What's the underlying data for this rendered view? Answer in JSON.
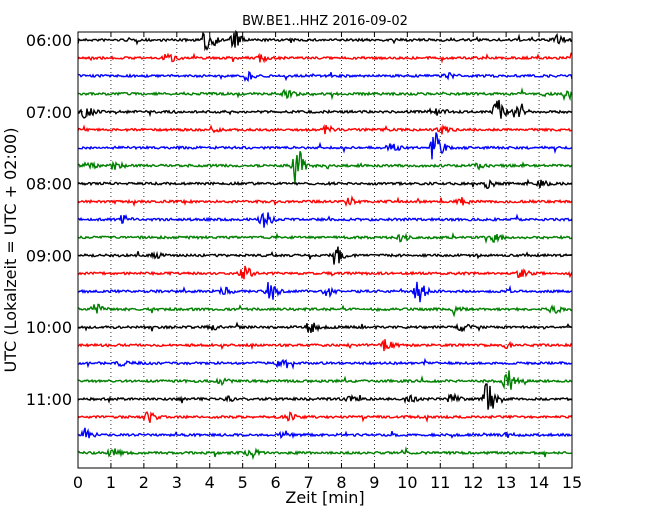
{
  "chart_data": {
    "type": "line",
    "title": "BW.BE1..HHZ 2016-09-02",
    "xlabel": "Zeit  [min]",
    "ylabel": "UTC (Lokalzeit = UTC + 02:00)",
    "xlim": [
      0,
      15
    ],
    "x_ticks": [
      "0",
      "1",
      "2",
      "3",
      "4",
      "5",
      "6",
      "7",
      "8",
      "9",
      "10",
      "11",
      "12",
      "13",
      "14",
      "15"
    ],
    "y_ticks": [
      "06:00",
      "07:00",
      "08:00",
      "09:00",
      "10:00",
      "11:00"
    ],
    "grid": "vertical dotted",
    "colors": [
      "#000000",
      "#ff0000",
      "#0000ff",
      "#008000"
    ],
    "traces": [
      {
        "start": "06:00",
        "color": "#000000",
        "events": [
          [
            3.9,
            1.0
          ],
          [
            4.7,
            0.7
          ],
          [
            14.5,
            0.4
          ]
        ]
      },
      {
        "start": "06:15",
        "color": "#ff0000",
        "events": [
          [
            2.7,
            0.4
          ],
          [
            5.5,
            0.3
          ],
          [
            15.0,
            0.5
          ]
        ]
      },
      {
        "start": "06:30",
        "color": "#0000ff",
        "events": [
          [
            5.1,
            0.3
          ],
          [
            11.2,
            0.2
          ]
        ]
      },
      {
        "start": "06:45",
        "color": "#008000",
        "events": [
          [
            6.3,
            0.4
          ],
          [
            14.8,
            0.4
          ]
        ]
      },
      {
        "start": "07:00",
        "color": "#000000",
        "events": [
          [
            0.2,
            0.5
          ],
          [
            10.9,
            0.3
          ],
          [
            12.7,
            1.0
          ],
          [
            13.3,
            0.6
          ]
        ]
      },
      {
        "start": "07:15",
        "color": "#ff0000",
        "events": [
          [
            4.0,
            0.2
          ],
          [
            7.5,
            0.3
          ],
          [
            11.0,
            0.3
          ]
        ]
      },
      {
        "start": "07:30",
        "color": "#0000ff",
        "events": [
          [
            10.8,
            1.5
          ],
          [
            9.5,
            0.3
          ]
        ]
      },
      {
        "start": "07:45",
        "color": "#008000",
        "events": [
          [
            0.3,
            0.4
          ],
          [
            1.1,
            0.3
          ],
          [
            6.6,
            1.5
          ],
          [
            12.1,
            0.3
          ]
        ]
      },
      {
        "start": "08:00",
        "color": "#000000",
        "events": [
          [
            12.4,
            0.3
          ],
          [
            14.0,
            0.3
          ]
        ]
      },
      {
        "start": "08:15",
        "color": "#ff0000",
        "events": [
          [
            8.2,
            0.3
          ],
          [
            11.6,
            0.3
          ]
        ]
      },
      {
        "start": "08:30",
        "color": "#0000ff",
        "events": [
          [
            1.3,
            0.3
          ],
          [
            5.6,
            0.8
          ]
        ]
      },
      {
        "start": "08:45",
        "color": "#008000",
        "events": [
          [
            9.8,
            0.3
          ],
          [
            12.6,
            0.3
          ]
        ]
      },
      {
        "start": "09:00",
        "color": "#000000",
        "events": [
          [
            7.8,
            0.8
          ],
          [
            2.3,
            0.3
          ]
        ]
      },
      {
        "start": "09:15",
        "color": "#ff0000",
        "events": [
          [
            5.0,
            0.6
          ],
          [
            13.4,
            0.3
          ]
        ]
      },
      {
        "start": "09:30",
        "color": "#0000ff",
        "events": [
          [
            5.8,
            0.8
          ],
          [
            10.3,
            0.9
          ],
          [
            4.4,
            0.3
          ],
          [
            7.5,
            0.3
          ]
        ]
      },
      {
        "start": "09:45",
        "color": "#008000",
        "events": [
          [
            0.5,
            0.4
          ],
          [
            14.4,
            0.3
          ],
          [
            11.4,
            0.2
          ]
        ]
      },
      {
        "start": "10:00",
        "color": "#000000",
        "events": [
          [
            7.0,
            0.6
          ],
          [
            4.0,
            0.2
          ],
          [
            11.6,
            0.3
          ]
        ]
      },
      {
        "start": "10:15",
        "color": "#ff0000",
        "events": [
          [
            9.3,
            0.4
          ],
          [
            13.0,
            0.2
          ]
        ]
      },
      {
        "start": "10:30",
        "color": "#0000ff",
        "events": [
          [
            1.3,
            0.2
          ],
          [
            6.1,
            0.3
          ]
        ]
      },
      {
        "start": "10:45",
        "color": "#008000",
        "events": [
          [
            13.0,
            0.9
          ],
          [
            4.3,
            0.3
          ]
        ]
      },
      {
        "start": "11:00",
        "color": "#000000",
        "events": [
          [
            12.4,
            1.3
          ],
          [
            11.3,
            0.4
          ],
          [
            4.5,
            0.3
          ],
          [
            10.0,
            0.3
          ],
          [
            8.2,
            0.2
          ]
        ]
      },
      {
        "start": "11:15",
        "color": "#ff0000",
        "events": [
          [
            2.1,
            0.5
          ],
          [
            6.4,
            0.3
          ]
        ]
      },
      {
        "start": "11:30",
        "color": "#0000ff",
        "events": [
          [
            0.2,
            0.6
          ],
          [
            6.2,
            0.3
          ],
          [
            13.0,
            0.2
          ]
        ]
      },
      {
        "start": "11:45",
        "color": "#008000",
        "events": [
          [
            1.0,
            0.4
          ],
          [
            5.2,
            0.4
          ]
        ]
      }
    ]
  }
}
